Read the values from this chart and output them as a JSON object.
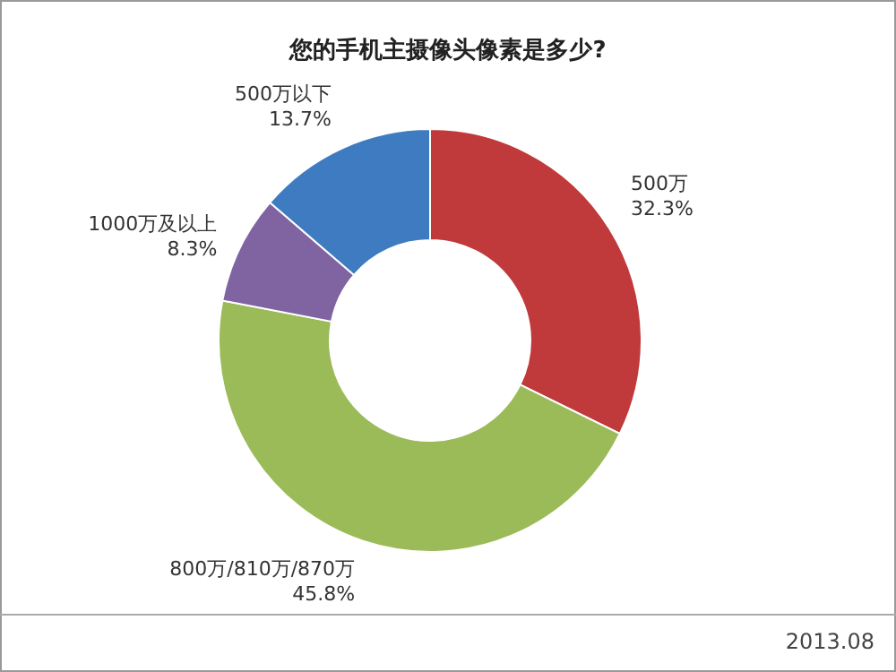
{
  "chart_data": {
    "type": "donut",
    "title": "您的手机主摄像头像素是多少?",
    "categories": [
      "500万",
      "800万/810万/870万",
      "1000万及以上",
      "500万以下"
    ],
    "values": [
      32.3,
      45.8,
      8.3,
      13.7
    ],
    "colors": [
      "#c0393b",
      "#9bbb59",
      "#8064a2",
      "#3f7bc1"
    ],
    "value_labels": [
      "32.3%",
      "45.8%",
      "8.3%",
      "13.7%"
    ],
    "annotations": [
      "2013.08"
    ]
  }
}
